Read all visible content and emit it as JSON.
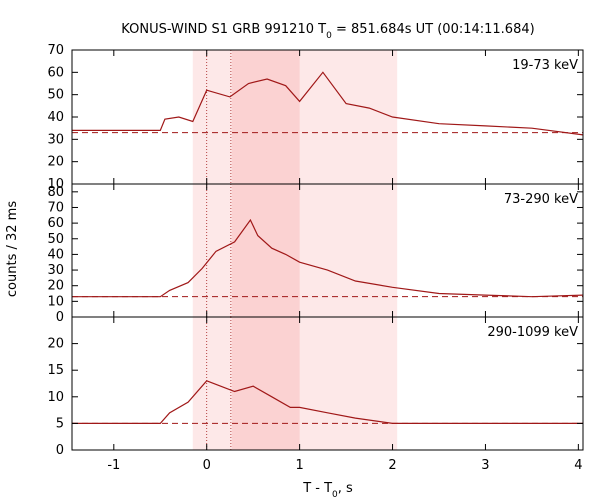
{
  "chart_data": {
    "type": "line",
    "title": "KONUS-WIND S1 GRB 991210 T0 = 851.684s UT (00:14:11.684)",
    "title_parts": {
      "pre": "KONUS-WIND S1 GRB 991210 T",
      "sub": "0",
      "post": " = 851.684s UT (00:14:11.684)"
    },
    "xlabel_parts": {
      "pre": "T - T",
      "sub": "0",
      "post": ", s"
    },
    "ylabel": "counts / 32 ms",
    "xlim": [
      -1.45,
      4.05
    ],
    "x_ticks": [
      -1,
      0,
      1,
      2,
      3,
      4
    ],
    "shaded_regions": [
      {
        "x": [
          -0.15,
          2.05
        ],
        "shade": "light"
      },
      {
        "x": [
          0.27,
          1.0
        ],
        "shade": "dark"
      }
    ],
    "vertical_dotted_lines": [
      0,
      0.26
    ],
    "colors": {
      "line": "#a01818",
      "light_band": "#fde8e8",
      "dark_band": "#fbd2d2"
    },
    "panels": [
      {
        "band": "19-73 keV",
        "ylim": [
          10,
          70
        ],
        "y_ticks": [
          10,
          20,
          30,
          40,
          50,
          60,
          70
        ],
        "background": 33,
        "series": [
          {
            "x": -1.45,
            "y": 34
          },
          {
            "x": -0.5,
            "y": 34
          },
          {
            "x": -0.45,
            "y": 39
          },
          {
            "x": -0.3,
            "y": 40
          },
          {
            "x": -0.15,
            "y": 38
          },
          {
            "x": 0,
            "y": 52
          },
          {
            "x": 0.25,
            "y": 49
          },
          {
            "x": 0.45,
            "y": 55
          },
          {
            "x": 0.65,
            "y": 57
          },
          {
            "x": 0.85,
            "y": 54
          },
          {
            "x": 1.0,
            "y": 47
          },
          {
            "x": 1.25,
            "y": 60
          },
          {
            "x": 1.5,
            "y": 46
          },
          {
            "x": 1.75,
            "y": 44
          },
          {
            "x": 2.0,
            "y": 40
          },
          {
            "x": 2.5,
            "y": 37
          },
          {
            "x": 3.0,
            "y": 36
          },
          {
            "x": 3.5,
            "y": 35
          },
          {
            "x": 4.05,
            "y": 32
          }
        ]
      },
      {
        "band": "73-290 keV",
        "ylim": [
          0,
          85
        ],
        "y_ticks": [
          0,
          10,
          20,
          30,
          40,
          50,
          60,
          70,
          80
        ],
        "background": 13,
        "series": [
          {
            "x": -1.45,
            "y": 13
          },
          {
            "x": -0.5,
            "y": 13
          },
          {
            "x": -0.4,
            "y": 17
          },
          {
            "x": -0.2,
            "y": 22
          },
          {
            "x": -0.05,
            "y": 31
          },
          {
            "x": 0.1,
            "y": 42
          },
          {
            "x": 0.3,
            "y": 48
          },
          {
            "x": 0.47,
            "y": 62
          },
          {
            "x": 0.55,
            "y": 52
          },
          {
            "x": 0.7,
            "y": 44
          },
          {
            "x": 0.85,
            "y": 40
          },
          {
            "x": 1.0,
            "y": 35
          },
          {
            "x": 1.3,
            "y": 30
          },
          {
            "x": 1.6,
            "y": 23
          },
          {
            "x": 2.0,
            "y": 19
          },
          {
            "x": 2.5,
            "y": 15
          },
          {
            "x": 3.0,
            "y": 14
          },
          {
            "x": 3.5,
            "y": 13
          },
          {
            "x": 4.05,
            "y": 14
          }
        ]
      },
      {
        "band": "290-1099 keV",
        "ylim": [
          0,
          25
        ],
        "y_ticks": [
          0,
          5,
          10,
          15,
          20
        ],
        "background": 5,
        "series": [
          {
            "x": -1.45,
            "y": 5
          },
          {
            "x": -0.5,
            "y": 5
          },
          {
            "x": -0.4,
            "y": 7
          },
          {
            "x": -0.2,
            "y": 9
          },
          {
            "x": 0,
            "y": 13
          },
          {
            "x": 0.15,
            "y": 12
          },
          {
            "x": 0.3,
            "y": 11
          },
          {
            "x": 0.5,
            "y": 12
          },
          {
            "x": 0.7,
            "y": 10
          },
          {
            "x": 0.9,
            "y": 8
          },
          {
            "x": 1.0,
            "y": 8
          },
          {
            "x": 1.3,
            "y": 7
          },
          {
            "x": 1.6,
            "y": 6
          },
          {
            "x": 2.0,
            "y": 5
          },
          {
            "x": 2.5,
            "y": 5
          },
          {
            "x": 3.0,
            "y": 5
          },
          {
            "x": 3.5,
            "y": 5
          },
          {
            "x": 4.05,
            "y": 5
          }
        ]
      }
    ]
  }
}
